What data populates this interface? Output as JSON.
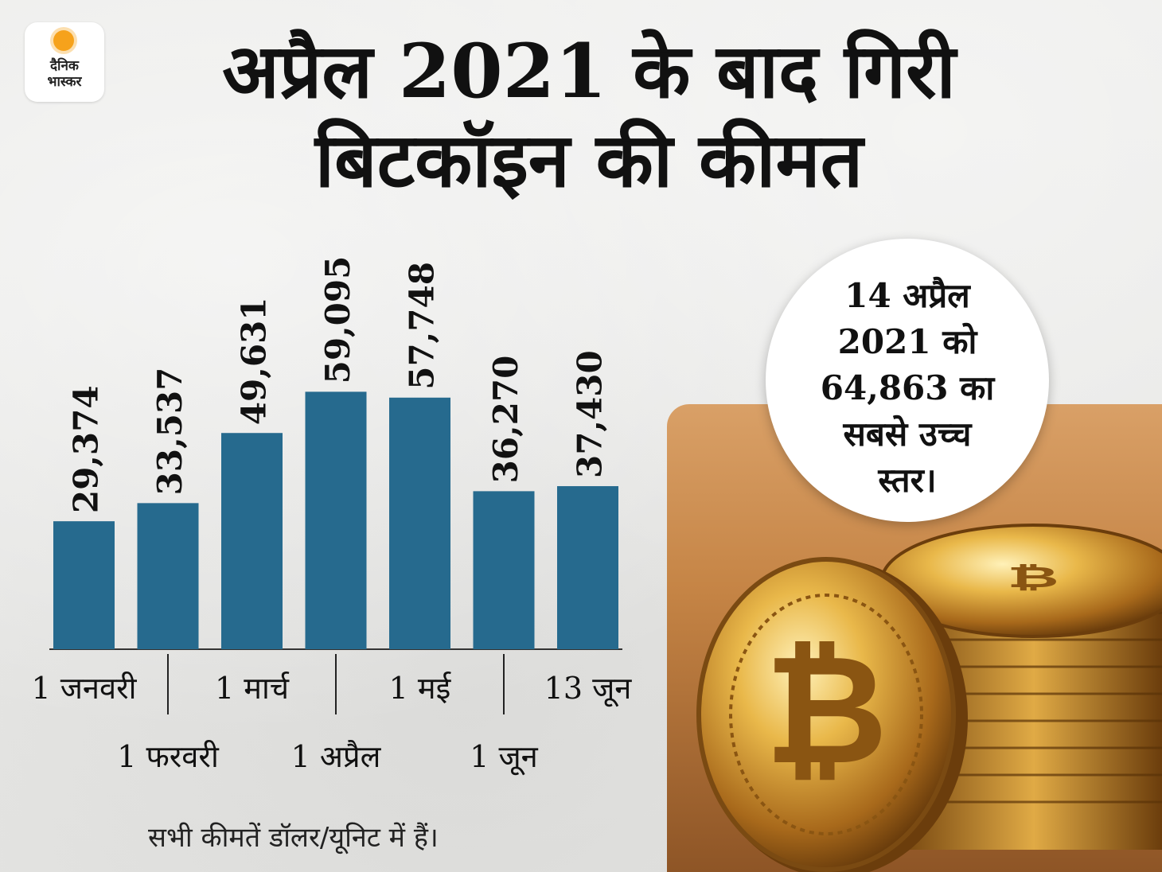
{
  "logo": {
    "line1": "दैनिक",
    "line2": "भास्कर",
    "icon": "sun-icon"
  },
  "title": {
    "line1": "अप्रैल 2021 के बाद गिरी",
    "line2": "बिटकॉइन की कीमत"
  },
  "badge": {
    "lines": [
      "14 अप्रैल",
      "2021 को",
      "64,863 का",
      "सबसे उच्च",
      "स्तर।"
    ]
  },
  "footnote": "सभी कीमतें डॉलर/यूनिट में हैं।",
  "colors": {
    "bar": "#266a8e",
    "text": "#111111",
    "badge_bg": "#ffffff"
  },
  "photo": {
    "icon": "bitcoin-coins-icon"
  },
  "chart_data": {
    "type": "bar",
    "categories": [
      "1 जनवरी",
      "1 फरवरी",
      "1 मार्च",
      "1 अप्रैल",
      "1 मई",
      "1 जून",
      "13 जून"
    ],
    "values": [
      29374,
      33537,
      49631,
      59095,
      57748,
      36270,
      37430
    ],
    "value_labels": [
      "29,374",
      "33,537",
      "49,631",
      "59,095",
      "57,748",
      "36,270",
      "37,430"
    ],
    "title": "अप्रैल 2021 के बाद गिरी बिटकॉइन की कीमत",
    "xlabel": "",
    "ylabel": "",
    "ylim": [
      0,
      64000
    ],
    "grid": false,
    "legend": "none",
    "label_rows": [
      "top",
      "bottom",
      "top",
      "bottom",
      "top",
      "bottom",
      "top"
    ]
  }
}
